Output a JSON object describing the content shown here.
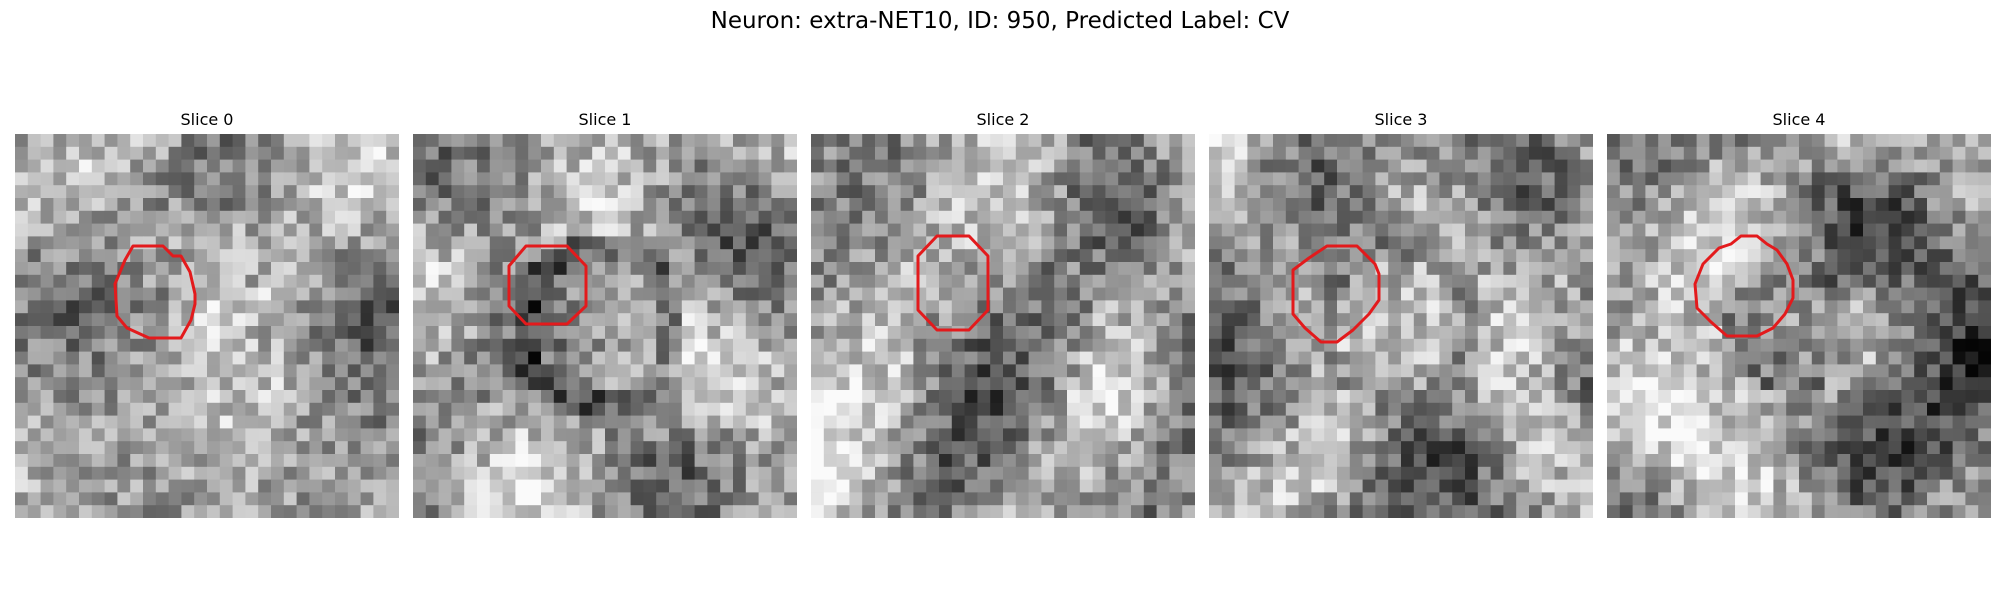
{
  "title": "Neuron: extra-NET10, ID: 950, Predicted Label: CV",
  "grid_size": 30,
  "contour_color": "#e31a1c",
  "panels": [
    {
      "label": "Slice 0",
      "seed": 11,
      "center": [
        0.5,
        0.5
      ],
      "brightness": 0.64,
      "inner": -0.16,
      "ring": -0.06
    },
    {
      "label": "Slice 1",
      "seed": 23,
      "center": [
        0.48,
        0.5
      ],
      "brightness": 0.62,
      "inner": 0.02,
      "ring": -0.26
    },
    {
      "label": "Slice 2",
      "seed": 37,
      "center": [
        0.5,
        0.5
      ],
      "brightness": 0.6,
      "inner": 0.0,
      "ring": -0.05
    },
    {
      "label": "Slice 3",
      "seed": 41,
      "center": [
        0.5,
        0.5
      ],
      "brightness": 0.58,
      "inner": 0.08,
      "ring": -0.12
    },
    {
      "label": "Slice 4",
      "seed": 59,
      "center": [
        0.48,
        0.5
      ],
      "brightness": 0.58,
      "inner": -0.2,
      "ring": 0.02
    }
  ]
}
